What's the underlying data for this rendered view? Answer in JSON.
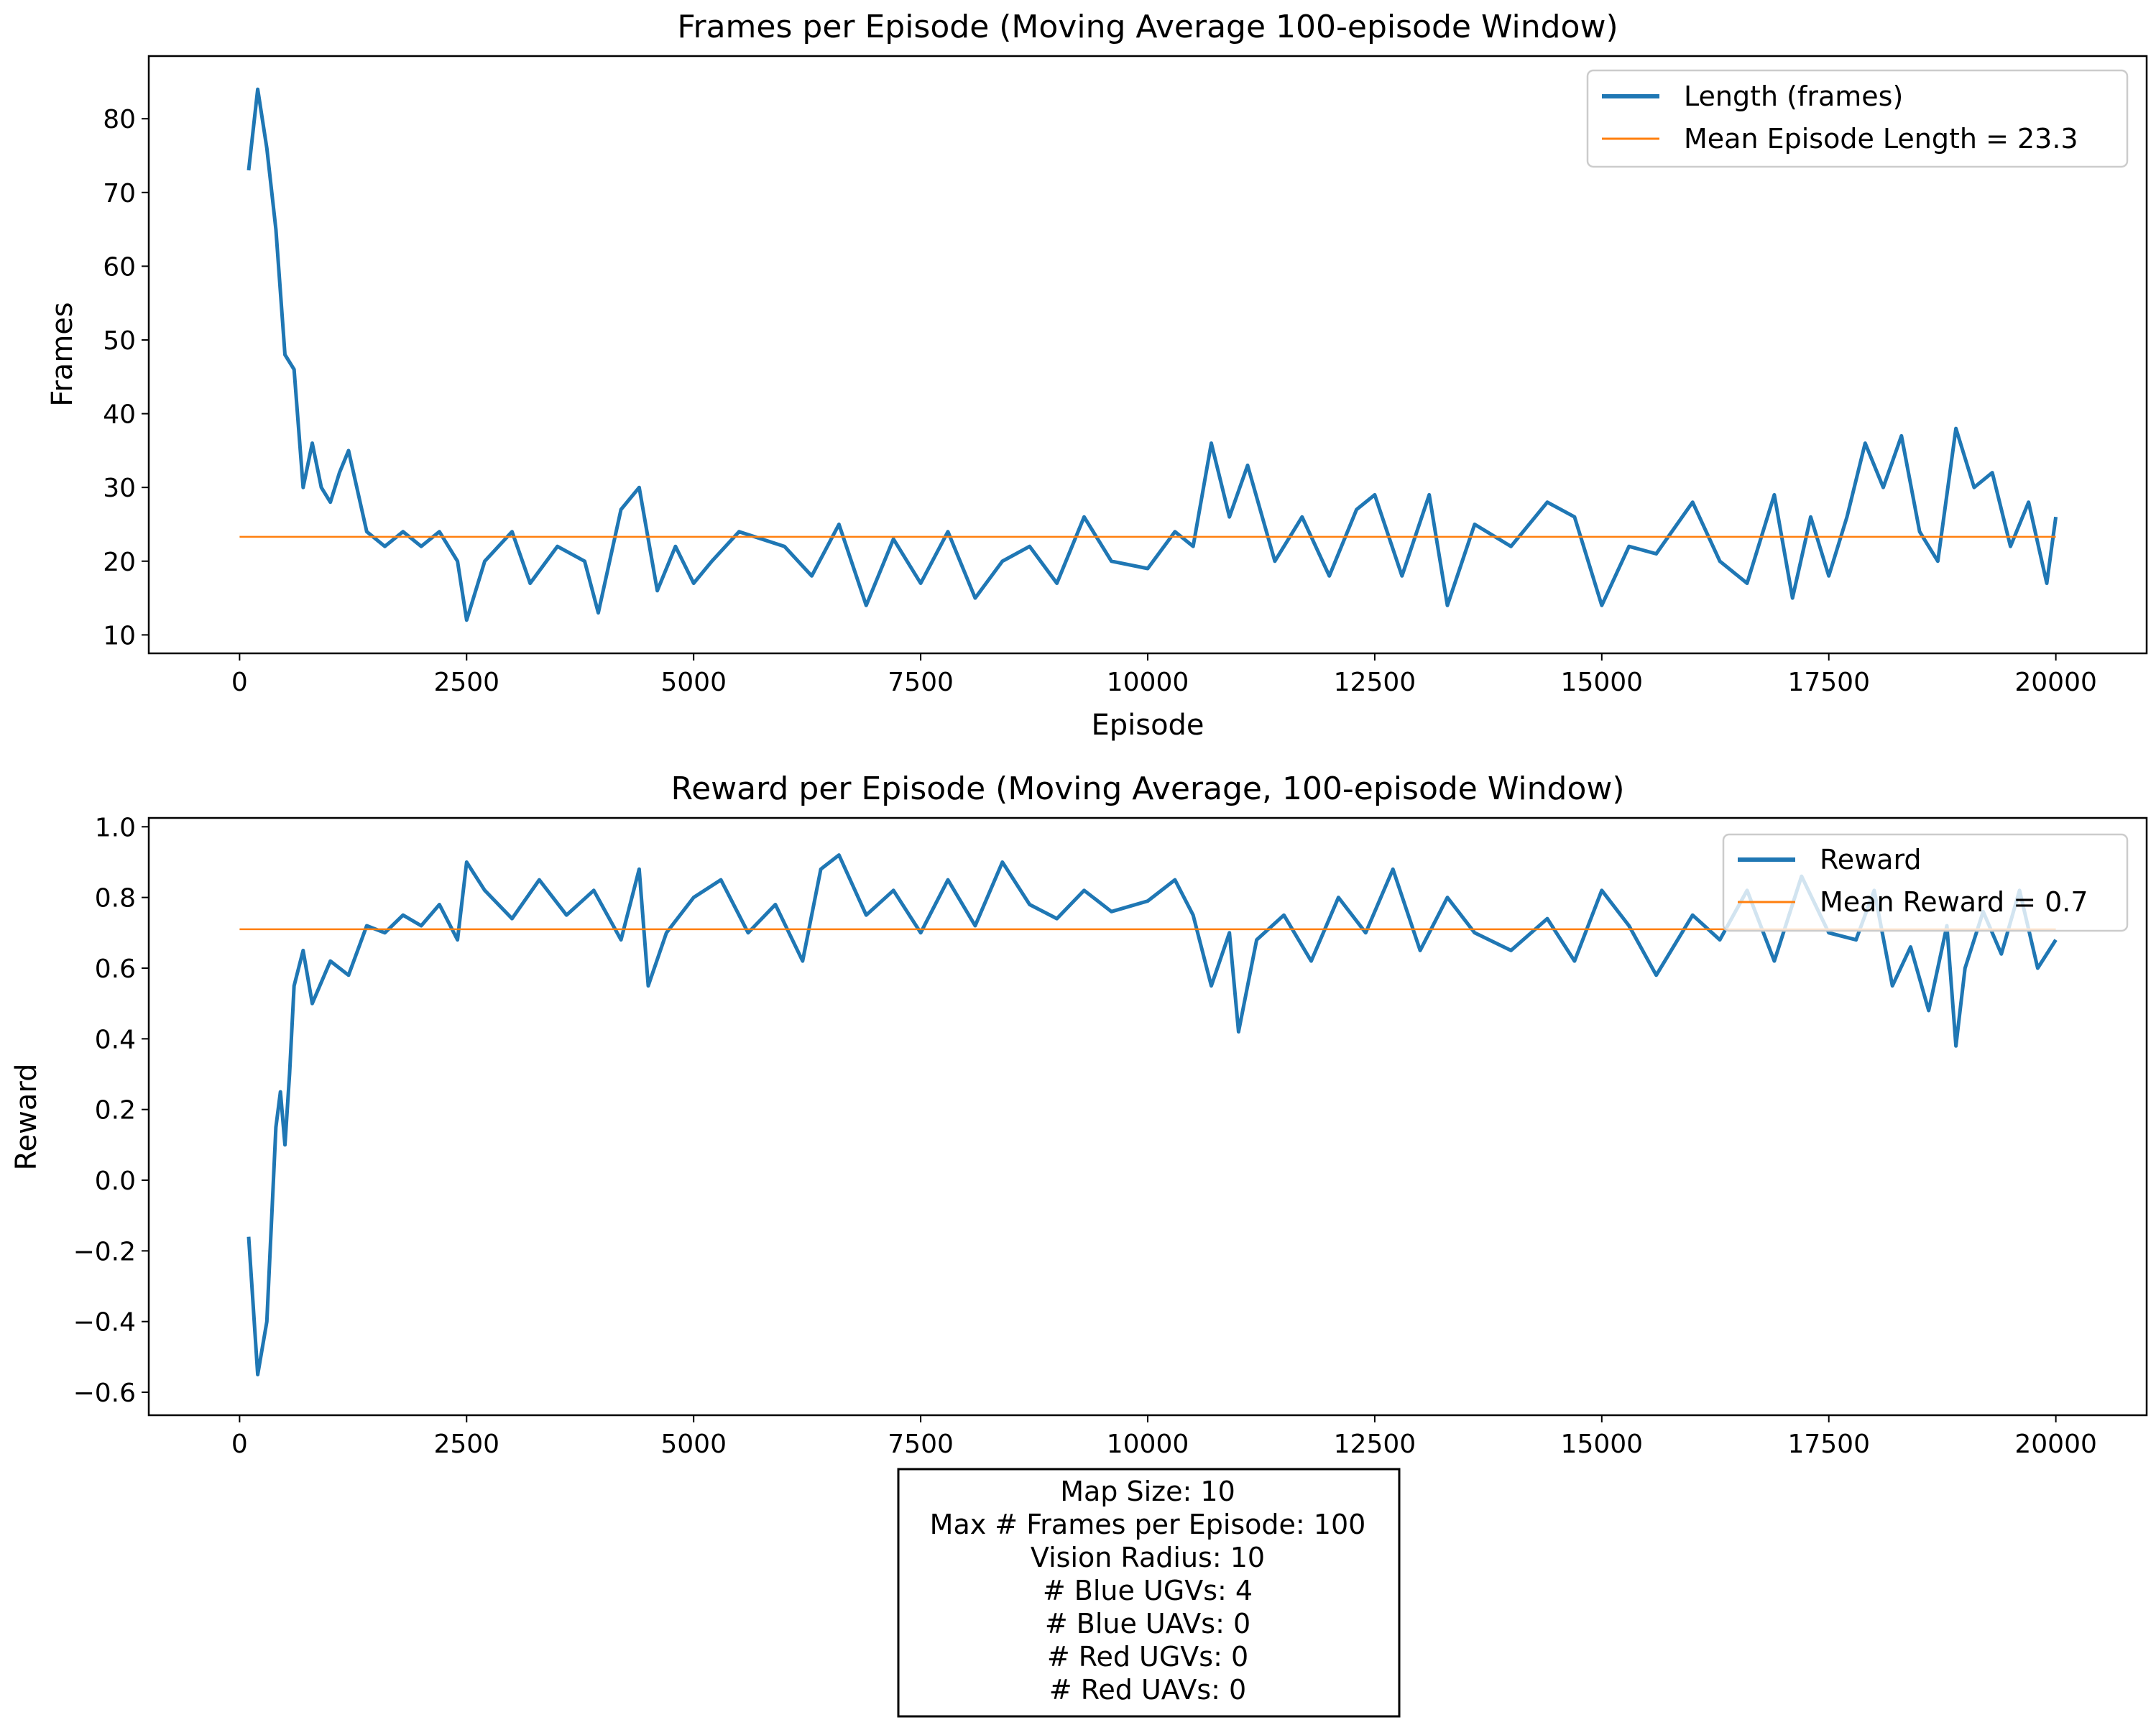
{
  "chart_data": [
    {
      "type": "line",
      "title": "Frames per Episode (Moving Average 100-episode Window)",
      "xlabel": "Episode",
      "ylabel": "Frames",
      "xlim": [
        -1000,
        21000
      ],
      "ylim": [
        7.5,
        88.5
      ],
      "xticks": [
        0,
        2500,
        5000,
        7500,
        10000,
        12500,
        15000,
        17500,
        20000
      ],
      "yticks": [
        10,
        20,
        30,
        40,
        50,
        60,
        70,
        80
      ],
      "legend_position": "upper right",
      "series": [
        {
          "name": "Length (frames)",
          "color": "#1f77b4",
          "x": [
            100,
            200,
            300,
            400,
            500,
            600,
            700,
            800,
            900,
            1000,
            1100,
            1200,
            1400,
            1600,
            1800,
            2000,
            2200,
            2400,
            2500,
            2700,
            3000,
            3200,
            3500,
            3800,
            3950,
            4200,
            4400,
            4600,
            4800,
            5000,
            5200,
            5500,
            6000,
            6300,
            6600,
            6900,
            7200,
            7500,
            7800,
            8100,
            8400,
            8700,
            9000,
            9300,
            9600,
            10000,
            10300,
            10500,
            10700,
            10900,
            11100,
            11400,
            11700,
            12000,
            12300,
            12500,
            12800,
            13100,
            13300,
            13600,
            14000,
            14400,
            14700,
            15000,
            15300,
            15600,
            16000,
            16300,
            16600,
            16900,
            17100,
            17300,
            17500,
            17700,
            17900,
            18100,
            18300,
            18500,
            18700,
            18900,
            19100,
            19300,
            19500,
            19700,
            19900,
            20000
          ],
          "values": [
            73,
            84,
            76,
            65,
            48,
            46,
            30,
            36,
            30,
            28,
            32,
            35,
            24,
            22,
            24,
            22,
            24,
            20,
            12,
            20,
            24,
            17,
            22,
            20,
            13,
            27,
            30,
            16,
            22,
            17,
            20,
            24,
            22,
            18,
            25,
            14,
            23,
            17,
            24,
            15,
            20,
            22,
            17,
            26,
            20,
            19,
            24,
            22,
            36,
            26,
            33,
            20,
            26,
            18,
            27,
            29,
            18,
            29,
            14,
            25,
            22,
            28,
            26,
            14,
            22,
            21,
            28,
            20,
            17,
            29,
            15,
            26,
            18,
            26,
            36,
            30,
            37,
            24,
            20,
            38,
            30,
            32,
            22,
            28,
            17,
            26
          ]
        },
        {
          "name": "Mean Episode Length = 23.3",
          "color": "#ff7f0e",
          "x": [
            0,
            20000
          ],
          "values": [
            23.3,
            23.3
          ]
        }
      ]
    },
    {
      "type": "line",
      "title": "Reward per Episode (Moving Average, 100-episode Window)",
      "xlabel": "",
      "ylabel": "Reward",
      "xlim": [
        -1000,
        21000
      ],
      "ylim": [
        -0.665,
        1.025
      ],
      "xticks": [
        0,
        2500,
        5000,
        7500,
        10000,
        12500,
        15000,
        17500,
        20000
      ],
      "yticks": [
        -0.6,
        -0.4,
        -0.2,
        0.0,
        0.2,
        0.4,
        0.6,
        0.8,
        1.0
      ],
      "legend_position": "upper right",
      "series": [
        {
          "name": "Reward",
          "color": "#1f77b4",
          "x": [
            100,
            200,
            300,
            400,
            450,
            500,
            550,
            600,
            700,
            800,
            1000,
            1200,
            1400,
            1600,
            1800,
            2000,
            2200,
            2400,
            2500,
            2700,
            3000,
            3300,
            3600,
            3900,
            4200,
            4400,
            4500,
            4700,
            5000,
            5300,
            5600,
            5900,
            6200,
            6400,
            6600,
            6900,
            7200,
            7500,
            7800,
            8100,
            8400,
            8700,
            9000,
            9300,
            9600,
            10000,
            10300,
            10500,
            10700,
            10900,
            11000,
            11200,
            11500,
            11800,
            12100,
            12400,
            12700,
            13000,
            13300,
            13600,
            14000,
            14400,
            14700,
            15000,
            15300,
            15600,
            16000,
            16300,
            16600,
            16900,
            17200,
            17500,
            17800,
            18000,
            18200,
            18400,
            18600,
            18800,
            18900,
            19000,
            19200,
            19400,
            19600,
            19800,
            20000
          ],
          "values": [
            -0.16,
            -0.55,
            -0.4,
            0.15,
            0.25,
            0.1,
            0.3,
            0.55,
            0.65,
            0.5,
            0.62,
            0.58,
            0.72,
            0.7,
            0.75,
            0.72,
            0.78,
            0.68,
            0.9,
            0.82,
            0.74,
            0.85,
            0.75,
            0.82,
            0.68,
            0.88,
            0.55,
            0.7,
            0.8,
            0.85,
            0.7,
            0.78,
            0.62,
            0.88,
            0.92,
            0.75,
            0.82,
            0.7,
            0.85,
            0.72,
            0.9,
            0.78,
            0.74,
            0.82,
            0.76,
            0.79,
            0.85,
            0.75,
            0.55,
            0.7,
            0.42,
            0.68,
            0.75,
            0.62,
            0.8,
            0.7,
            0.88,
            0.65,
            0.8,
            0.7,
            0.65,
            0.74,
            0.62,
            0.82,
            0.72,
            0.58,
            0.75,
            0.68,
            0.82,
            0.62,
            0.86,
            0.7,
            0.68,
            0.82,
            0.55,
            0.66,
            0.48,
            0.72,
            0.38,
            0.6,
            0.76,
            0.64,
            0.82,
            0.6,
            0.68
          ]
        },
        {
          "name": "Mean Reward = 0.7",
          "color": "#ff7f0e",
          "x": [
            0,
            20000
          ],
          "values": [
            0.71,
            0.71
          ]
        }
      ]
    }
  ],
  "info_box": {
    "lines": [
      "Map Size: 10",
      "Max # Frames per Episode: 100",
      "Vision Radius: 10",
      "# Blue UGVs: 4",
      "# Blue UAVs: 0",
      "# Red UGVs: 0",
      "# Red UAVs: 0"
    ]
  }
}
